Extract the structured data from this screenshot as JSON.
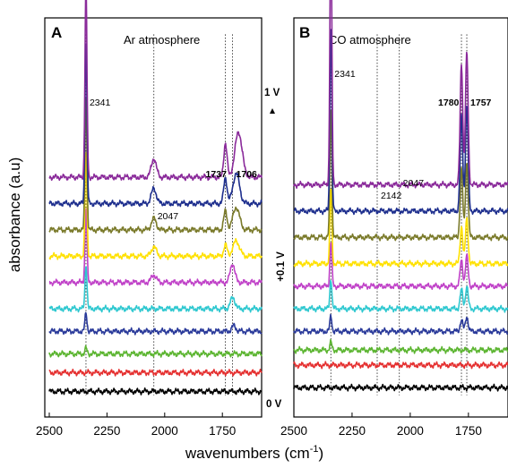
{
  "chart_data": [
    {
      "type": "line",
      "panel_label": "A",
      "title": "Ar atmosphere",
      "ylabel": "absorbance (a.u)",
      "x_ticks": [
        2500,
        2250,
        2000,
        1750
      ],
      "xlim": [
        2500,
        1580
      ],
      "ylim": [
        0,
        1
      ],
      "grid": false,
      "annotations": [
        {
          "text": "2341",
          "x": 2341,
          "bold": false
        },
        {
          "text": "2047",
          "x": 2047,
          "bold": false
        },
        {
          "text": "1737",
          "x": 1737,
          "bold": true
        },
        {
          "text": "1706",
          "x": 1706,
          "bold": true
        }
      ],
      "series": [
        {
          "color": "#000000",
          "baseline": 0.03,
          "peaks": []
        },
        {
          "color": "#e53030",
          "baseline": 0.08,
          "peaks": []
        },
        {
          "color": "#5cb531",
          "baseline": 0.13,
          "peaks": [
            {
              "x": 2341,
              "w": 6,
              "h": 0.015
            }
          ]
        },
        {
          "color": "#2a3a9a",
          "baseline": 0.19,
          "peaks": [
            {
              "x": 2341,
              "w": 6,
              "h": 0.05
            },
            {
              "x": 1700,
              "w": 12,
              "h": 0.015
            }
          ]
        },
        {
          "color": "#2fc8d0",
          "baseline": 0.25,
          "peaks": [
            {
              "x": 2341,
              "w": 6,
              "h": 0.12
            },
            {
              "x": 1705,
              "w": 14,
              "h": 0.03
            }
          ]
        },
        {
          "color": "#c042c8",
          "baseline": 0.32,
          "peaks": [
            {
              "x": 2341,
              "w": 6,
              "h": 0.2
            },
            {
              "x": 2047,
              "w": 15,
              "h": 0.02
            },
            {
              "x": 1706,
              "w": 14,
              "h": 0.05
            }
          ]
        },
        {
          "color": "#ffe100",
          "baseline": 0.39,
          "peaks": [
            {
              "x": 2341,
              "w": 6,
              "h": 0.28
            },
            {
              "x": 2047,
              "w": 15,
              "h": 0.025
            },
            {
              "x": 1737,
              "w": 10,
              "h": 0.03
            },
            {
              "x": 1690,
              "w": 20,
              "h": 0.04
            }
          ]
        },
        {
          "color": "#7a7a2a",
          "baseline": 0.46,
          "peaks": [
            {
              "x": 2341,
              "w": 6,
              "h": 0.36
            },
            {
              "x": 2047,
              "w": 15,
              "h": 0.03
            },
            {
              "x": 1737,
              "w": 10,
              "h": 0.05
            },
            {
              "x": 1690,
              "w": 20,
              "h": 0.06
            }
          ]
        },
        {
          "color": "#1e2f8e",
          "baseline": 0.53,
          "peaks": [
            {
              "x": 2341,
              "w": 6,
              "h": 0.44
            },
            {
              "x": 2047,
              "w": 15,
              "h": 0.04
            },
            {
              "x": 1737,
              "w": 10,
              "h": 0.07
            },
            {
              "x": 1690,
              "w": 20,
              "h": 0.08
            }
          ]
        },
        {
          "color": "#8a2a9a",
          "baseline": 0.6,
          "peaks": [
            {
              "x": 2341,
              "w": 6,
              "h": 0.52
            },
            {
              "x": 2047,
              "w": 15,
              "h": 0.05
            },
            {
              "x": 1737,
              "w": 10,
              "h": 0.09
            },
            {
              "x": 1680,
              "w": 22,
              "h": 0.12
            }
          ]
        }
      ]
    },
    {
      "type": "line",
      "panel_label": "B",
      "title": "CO atmosphere",
      "x_ticks": [
        2500,
        2250,
        2000,
        1750
      ],
      "xlim": [
        2500,
        1580
      ],
      "ylim": [
        0,
        1
      ],
      "grid": false,
      "annotations": [
        {
          "text": "2341",
          "x": 2341,
          "bold": false
        },
        {
          "text": "2142",
          "x": 2142,
          "bold": false
        },
        {
          "text": "2047",
          "x": 2047,
          "bold": false
        },
        {
          "text": "1780",
          "x": 1780,
          "bold": true
        },
        {
          "text": "1757",
          "x": 1757,
          "bold": true
        }
      ],
      "series": [
        {
          "color": "#000000",
          "baseline": 0.04,
          "peaks": []
        },
        {
          "color": "#e53030",
          "baseline": 0.1,
          "peaks": []
        },
        {
          "color": "#5cb531",
          "baseline": 0.14,
          "peaks": [
            {
              "x": 2341,
              "w": 6,
              "h": 0.02
            }
          ]
        },
        {
          "color": "#2a3a9a",
          "baseline": 0.19,
          "peaks": [
            {
              "x": 2341,
              "w": 6,
              "h": 0.04
            },
            {
              "x": 1780,
              "w": 8,
              "h": 0.03
            },
            {
              "x": 1757,
              "w": 8,
              "h": 0.04
            }
          ]
        },
        {
          "color": "#2fc8d0",
          "baseline": 0.25,
          "peaks": [
            {
              "x": 2341,
              "w": 6,
              "h": 0.08
            },
            {
              "x": 1780,
              "w": 8,
              "h": 0.05
            },
            {
              "x": 1757,
              "w": 8,
              "h": 0.06
            }
          ]
        },
        {
          "color": "#c042c8",
          "baseline": 0.31,
          "peaks": [
            {
              "x": 2341,
              "w": 6,
              "h": 0.12
            },
            {
              "x": 1780,
              "w": 8,
              "h": 0.07
            },
            {
              "x": 1757,
              "w": 8,
              "h": 0.08
            }
          ]
        },
        {
          "color": "#ffe100",
          "baseline": 0.37,
          "peaks": [
            {
              "x": 2341,
              "w": 6,
              "h": 0.2
            },
            {
              "x": 1780,
              "w": 8,
              "h": 0.1
            },
            {
              "x": 1757,
              "w": 8,
              "h": 0.12
            }
          ]
        },
        {
          "color": "#7a7a2a",
          "baseline": 0.44,
          "peaks": [
            {
              "x": 2341,
              "w": 6,
              "h": 0.35
            },
            {
              "x": 1780,
              "w": 8,
              "h": 0.18
            },
            {
              "x": 1757,
              "w": 8,
              "h": 0.2
            }
          ]
        },
        {
          "color": "#1e2f8e",
          "baseline": 0.51,
          "peaks": [
            {
              "x": 2341,
              "w": 6,
              "h": 0.5
            },
            {
              "x": 1780,
              "w": 8,
              "h": 0.25
            },
            {
              "x": 1757,
              "w": 8,
              "h": 0.28
            }
          ]
        },
        {
          "color": "#8a2a9a",
          "baseline": 0.58,
          "peaks": [
            {
              "x": 2341,
              "w": 6,
              "h": 0.7
            },
            {
              "x": 1780,
              "w": 8,
              "h": 0.32
            },
            {
              "x": 1757,
              "w": 8,
              "h": 0.35
            }
          ]
        }
      ]
    }
  ],
  "ylabel": "absorbance (a.u)",
  "xlabel": "wavenumbers (cm",
  "xlabel_superscript": "-1",
  "xlabel_close": ")",
  "potential_top": "1 V",
  "potential_mid": "+0.1 V",
  "potential_bottom": "0 V"
}
